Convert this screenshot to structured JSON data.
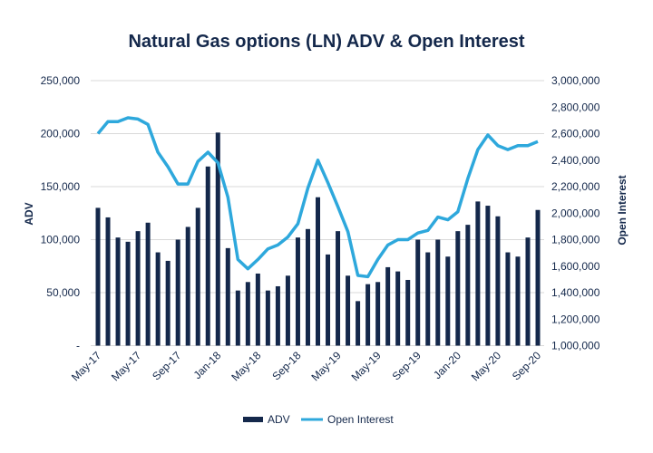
{
  "chart_data": {
    "type": "bar+line",
    "title": "Natural Gas options (LN) ADV & Open Interest",
    "ylabel": "ADV",
    "y2label": "Open Interest",
    "ylim": [
      0,
      250000
    ],
    "y2lim": [
      1000000,
      3000000
    ],
    "y_ticks": [
      "-",
      "50,000",
      "100,000",
      "150,000",
      "200,000",
      "250,000"
    ],
    "y2_ticks": [
      "1,000,000",
      "1,200,000",
      "1,400,000",
      "1,600,000",
      "1,800,000",
      "2,000,000",
      "2,200,000",
      "2,400,000",
      "2,600,000",
      "2,800,000",
      "3,000,000"
    ],
    "x_tick_labels": [
      "May-17",
      "May-17",
      "Sep-17",
      "Jan-18",
      "May-18",
      "Sep-18",
      "May-19",
      "May-19",
      "Sep-19",
      "Jan-20",
      "May-20",
      "Sep-20"
    ],
    "grid": true,
    "legend": "bottom",
    "colors": {
      "ADV": "#14284b",
      "Open Interest": "#2ea8dc",
      "title": "#14284b"
    },
    "series": [
      {
        "name": "ADV",
        "type": "bar",
        "axis": "left",
        "values": [
          130000,
          121000,
          102000,
          98000,
          108000,
          116000,
          88000,
          80000,
          100000,
          112000,
          130000,
          169000,
          201000,
          92000,
          52000,
          60000,
          68000,
          52000,
          56000,
          66000,
          102000,
          110000,
          140000,
          86000,
          108000,
          66000,
          42000,
          58000,
          60000,
          74000,
          70000,
          62000,
          100000,
          88000,
          100000,
          84000,
          108000,
          114000,
          136000,
          132000,
          122000,
          88000,
          84000,
          102000,
          128000
        ]
      },
      {
        "name": "Open Interest",
        "type": "line",
        "axis": "right",
        "values": [
          2600000,
          2690000,
          2690000,
          2720000,
          2710000,
          2670000,
          2460000,
          2350000,
          2220000,
          2220000,
          2390000,
          2460000,
          2380000,
          2120000,
          1650000,
          1580000,
          1650000,
          1730000,
          1760000,
          1820000,
          1920000,
          2190000,
          2400000,
          2230000,
          2050000,
          1860000,
          1530000,
          1520000,
          1650000,
          1760000,
          1800000,
          1800000,
          1850000,
          1870000,
          1970000,
          1950000,
          2010000,
          2260000,
          2480000,
          2590000,
          2510000,
          2480000,
          2510000,
          2510000,
          2540000
        ]
      }
    ]
  }
}
